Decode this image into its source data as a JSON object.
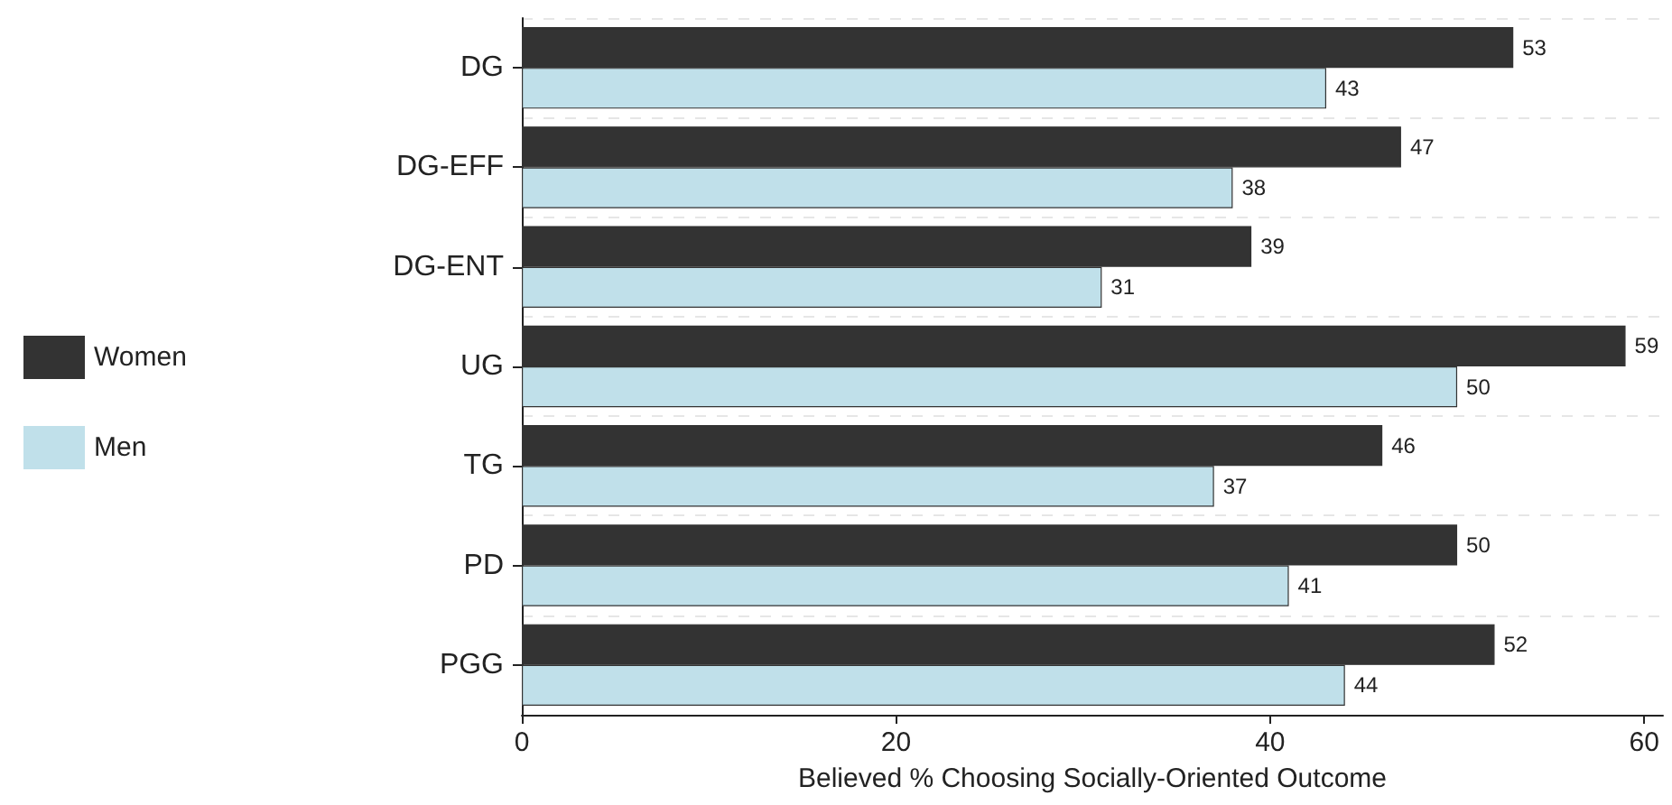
{
  "chart_data": {
    "type": "bar",
    "orientation": "horizontal",
    "xlabel": "Believed % Choosing Socially-Oriented Outcome",
    "categories": [
      "DG",
      "DG-EFF",
      "DG-ENT",
      "UG",
      "TG",
      "PD",
      "PGG"
    ],
    "series": [
      {
        "name": "Women",
        "color": "#333333",
        "values": [
          53,
          47,
          39,
          59,
          46,
          50,
          52
        ]
      },
      {
        "name": "Men",
        "color": "#c0e0ea",
        "values": [
          43,
          38,
          31,
          50,
          37,
          41,
          44
        ]
      }
    ],
    "xlim": [
      0,
      61
    ],
    "xticks": [
      0,
      20,
      40,
      60
    ],
    "grid": "y",
    "legend": "left",
    "data_labels": true
  }
}
